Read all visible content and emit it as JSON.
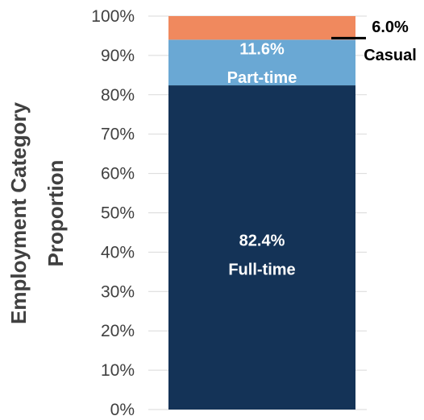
{
  "chart_data": {
    "type": "bar",
    "stacked": true,
    "title": "",
    "ylabel": "Employment Category Proportion",
    "ylabel_lines": [
      "Employment Category",
      "Proportion"
    ],
    "xlabel": "",
    "ylim": [
      0,
      100
    ],
    "yticks": [
      "0%",
      "10%",
      "20%",
      "30%",
      "40%",
      "50%",
      "60%",
      "70%",
      "80%",
      "90%",
      "100%"
    ],
    "gridlines": true,
    "legend": "none",
    "series": [
      {
        "name": "Full-time",
        "value": 82.4,
        "value_label": "82.4%",
        "color": "#143357"
      },
      {
        "name": "Part-time",
        "value": 11.6,
        "value_label": "11.6%",
        "color": "#6aa8d4"
      },
      {
        "name": "Casual",
        "value": 6.0,
        "value_label": "6.0%",
        "color": "#f0895e"
      }
    ]
  }
}
